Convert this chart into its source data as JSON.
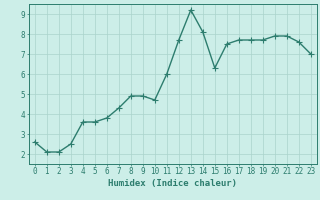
{
  "x": [
    0,
    1,
    2,
    3,
    4,
    5,
    6,
    7,
    8,
    9,
    10,
    11,
    12,
    13,
    14,
    15,
    16,
    17,
    18,
    19,
    20,
    21,
    22,
    23
  ],
  "y": [
    2.6,
    2.1,
    2.1,
    2.5,
    3.6,
    3.6,
    3.8,
    4.3,
    4.9,
    4.9,
    4.7,
    6.0,
    7.7,
    9.2,
    8.1,
    6.3,
    7.5,
    7.7,
    7.7,
    7.7,
    7.9,
    7.9,
    7.6,
    7.0
  ],
  "line_color": "#2d7d6e",
  "marker": "D",
  "marker_size": 2.0,
  "bg_color": "#cceee8",
  "grid_color": "#aad4cc",
  "tick_color": "#2d7d6e",
  "spine_color": "#2d7d6e",
  "xlabel": "Humidex (Indice chaleur)",
  "xlabel_fontsize": 6.5,
  "tick_fontsize": 5.5,
  "xlim": [
    -0.5,
    23.5
  ],
  "ylim": [
    1.5,
    9.5
  ],
  "yticks": [
    2,
    3,
    4,
    5,
    6,
    7,
    8,
    9
  ],
  "xticks": [
    0,
    1,
    2,
    3,
    4,
    5,
    6,
    7,
    8,
    9,
    10,
    11,
    12,
    13,
    14,
    15,
    16,
    17,
    18,
    19,
    20,
    21,
    22,
    23
  ],
  "linewidth": 1.0
}
